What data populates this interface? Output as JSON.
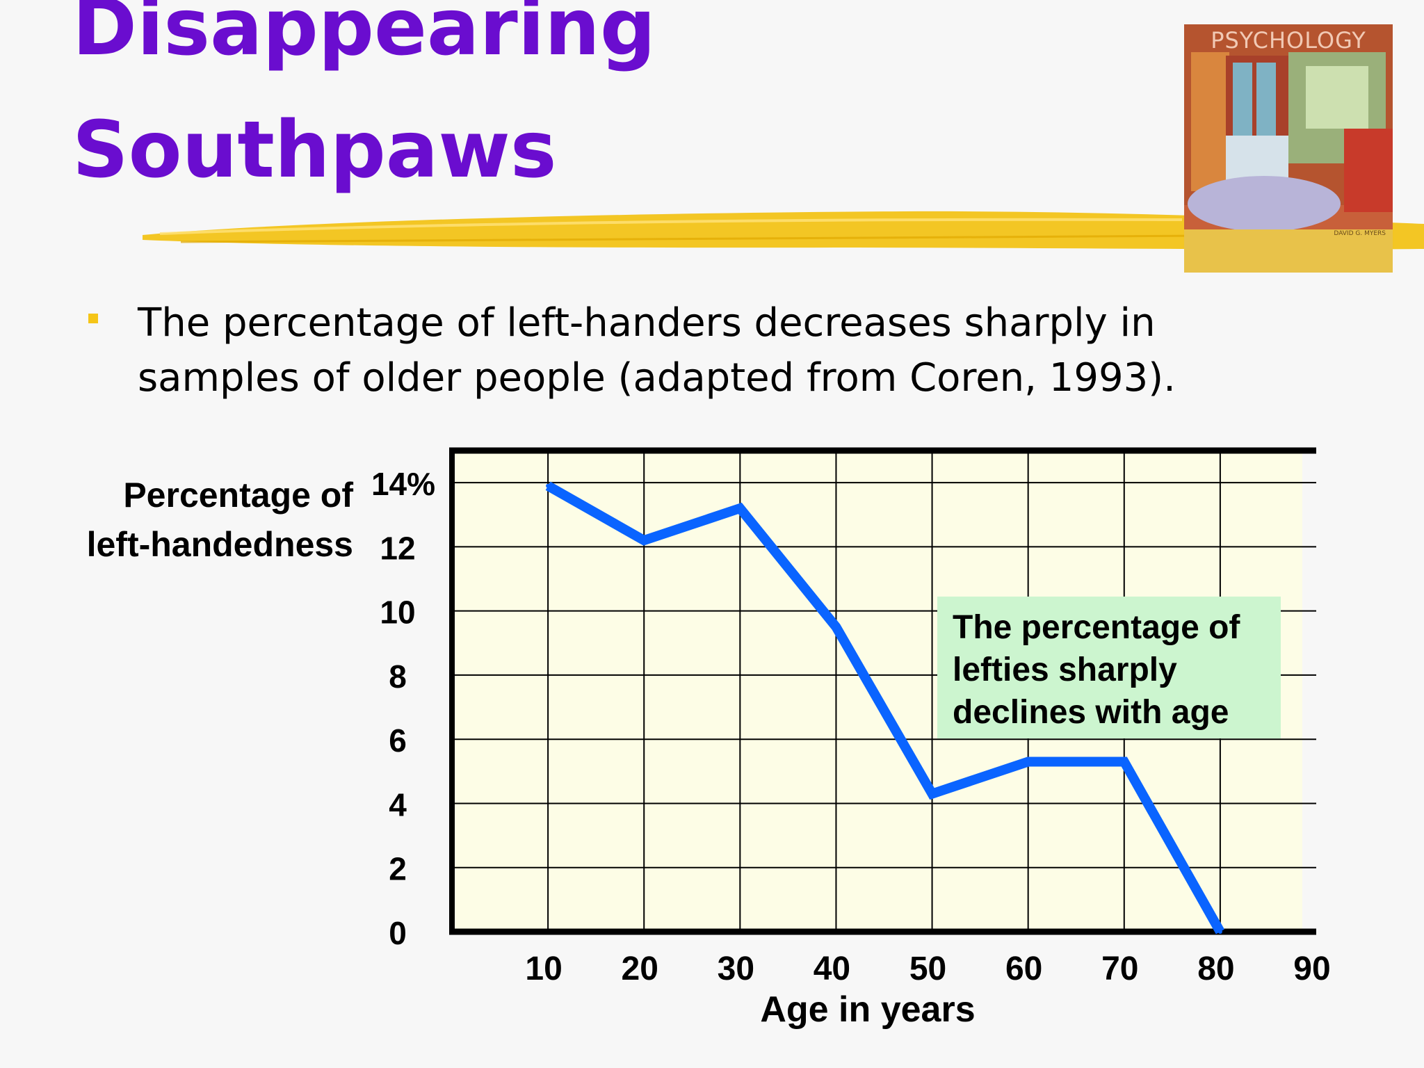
{
  "slide": {
    "title_line1": "Disappearing",
    "title_line2": "Southpaws",
    "bullet_text": "The percentage of left-handers decreases sharply in samples of older people (adapted from Coren, 1993).",
    "book_title": "PSYCHOLOGY",
    "book_author": "DAVID G. MYERS",
    "callout": "The percentage of lefties sharply declines with age"
  },
  "colors": {
    "title": "#6a0dcf",
    "bullet": "#f5c518",
    "brush": "#f2c318",
    "plot_background": "#fdfde6",
    "series_line": "#0a64ff",
    "callout_background": "#ccf5cf"
  },
  "chart_data": {
    "type": "line",
    "ylabel_line1": "Percentage of",
    "ylabel_line2": "left-handedness",
    "xlabel": "Age in years",
    "x_ticks": [
      "10",
      "20",
      "30",
      "40",
      "50",
      "60",
      "70",
      "80",
      "90"
    ],
    "y_ticks": [
      "0",
      "2",
      "4",
      "6",
      "8",
      "10",
      "12",
      "14%"
    ],
    "xlim": [
      0,
      90
    ],
    "ylim": [
      0,
      15
    ],
    "grid": true,
    "series": [
      {
        "x": [
          10,
          20,
          30,
          40,
          50,
          60,
          70,
          80
        ],
        "values": [
          13.9,
          12.2,
          13.2,
          9.5,
          4.3,
          5.3,
          5.3,
          0
        ]
      }
    ]
  }
}
